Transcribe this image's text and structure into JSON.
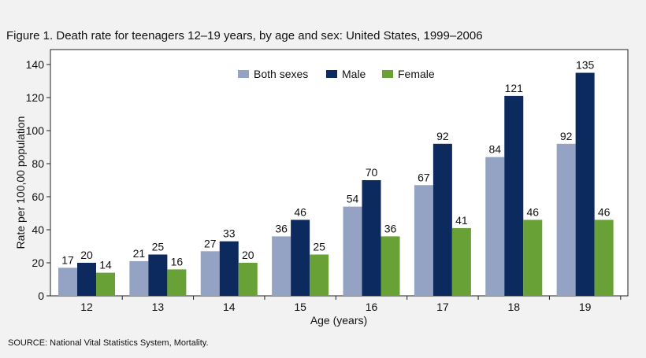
{
  "title": "Figure 1. Death rate for teenagers 12–19 years, by age and sex: United States, 1999–2006",
  "source": "SOURCE: National Vital Statistics System, Mortality.",
  "chart_data": {
    "type": "bar",
    "title": "Figure 1. Death rate for teenagers 12–19 years, by age and sex: United States, 1999–2006",
    "xlabel": "Age (years)",
    "ylabel": "Rate per 100,00 population",
    "categories": [
      "12",
      "13",
      "14",
      "15",
      "16",
      "17",
      "18",
      "19"
    ],
    "series": [
      {
        "name": "Both sexes",
        "color": "#94a3c4",
        "values": [
          17,
          21,
          27,
          36,
          54,
          67,
          84,
          92
        ]
      },
      {
        "name": "Male",
        "color": "#0c2a5e",
        "values": [
          20,
          25,
          33,
          46,
          70,
          92,
          121,
          135
        ]
      },
      {
        "name": "Female",
        "color": "#68a136",
        "values": [
          14,
          16,
          20,
          25,
          36,
          41,
          46,
          46
        ]
      }
    ],
    "ylim": [
      0,
      140
    ],
    "yticks": [
      0,
      20,
      40,
      60,
      80,
      100,
      120,
      140
    ],
    "legend_position": "top-center",
    "grid": false
  }
}
